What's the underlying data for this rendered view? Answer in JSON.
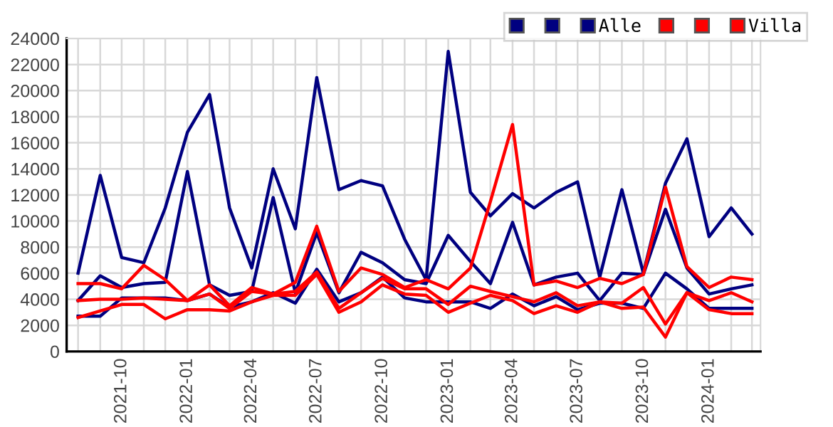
{
  "chart_data": {
    "type": "line",
    "legend": "top right",
    "grid": true,
    "marker": "none",
    "line_style": "solid",
    "x": [
      "2021-08",
      "2021-09",
      "2021-10",
      "2021-11",
      "2021-12",
      "2022-01",
      "2022-02",
      "2022-03",
      "2022-04",
      "2022-05",
      "2022-06",
      "2022-07",
      "2022-08",
      "2022-09",
      "2022-10",
      "2022-11",
      "2022-12",
      "2023-01",
      "2023-02",
      "2023-03",
      "2023-04",
      "2023-05",
      "2023-06",
      "2023-07",
      "2023-08",
      "2023-09",
      "2023-10",
      "2023-11",
      "2023-12",
      "2024-01",
      "2024-02",
      "2024-03"
    ],
    "xlim": [
      "2021-07-16",
      "2024-03-13"
    ],
    "xticks": [
      {
        "value": "2021-08",
        "label": null
      },
      {
        "value": "2021-09",
        "label": null
      },
      "2021-10",
      {
        "value": "2021-11",
        "label": null
      },
      {
        "value": "2021-12",
        "label": null
      },
      "2022-01",
      {
        "value": "2022-02",
        "label": null
      },
      {
        "value": "2022-03",
        "label": null
      },
      "2022-04",
      {
        "value": "2022-05",
        "label": null
      },
      {
        "value": "2022-06",
        "label": null
      },
      "2022-07",
      {
        "value": "2022-08",
        "label": null
      },
      {
        "value": "2022-09",
        "label": null
      },
      "2022-10",
      {
        "value": "2022-11",
        "label": null
      },
      {
        "value": "2022-12",
        "label": null
      },
      "2023-01",
      {
        "value": "2023-02",
        "label": null
      },
      {
        "value": "2023-03",
        "label": null
      },
      "2023-04",
      {
        "value": "2023-05",
        "label": null
      },
      {
        "value": "2023-06",
        "label": null
      },
      "2023-07",
      {
        "value": "2023-08",
        "label": null
      },
      {
        "value": "2023-09",
        "label": null
      },
      "2023-10",
      {
        "value": "2023-11",
        "label": null
      },
      {
        "value": "2023-12",
        "label": null
      },
      "2024-01",
      {
        "value": "2024-02",
        "label": null
      },
      {
        "value": "2024-03",
        "label": null
      }
    ],
    "ylim": [
      0,
      24000
    ],
    "yticks": [
      0,
      2000,
      4000,
      6000,
      8000,
      10000,
      12000,
      14000,
      16000,
      18000,
      20000,
      22000,
      24000
    ],
    "series": [
      {
        "color": "#000080",
        "values": [
          6000,
          13500,
          7200,
          6800,
          11000,
          16800,
          19700,
          11000,
          6400,
          14000,
          9400,
          21000,
          12400,
          13100,
          12700,
          8600,
          5500,
          23000,
          12200,
          10400,
          12100,
          11000,
          12200,
          13000,
          5700,
          12400,
          6000,
          12900,
          16300,
          8800,
          11000,
          9000
        ]
      },
      {
        "color": "#000080",
        "values": [
          3900,
          5800,
          4900,
          5200,
          5300,
          13800,
          5100,
          4300,
          4600,
          11800,
          4500,
          9100,
          4500,
          7600,
          6800,
          5500,
          5200,
          8900,
          6900,
          5200,
          9900,
          5100,
          5700,
          6000,
          3900,
          6000,
          5900,
          10900,
          6400,
          4400,
          4800,
          5100
        ]
      },
      {
        "name": "Alle",
        "color": "#000080",
        "values": [
          2700,
          2700,
          4100,
          4100,
          4100,
          3900,
          4400,
          3400,
          3800,
          4500,
          3700,
          6300,
          3800,
          4500,
          5700,
          4100,
          3800,
          3800,
          3800,
          3300,
          4400,
          3500,
          4200,
          3200,
          3700,
          3700,
          3300,
          6000,
          4800,
          3300,
          3300,
          3300
        ]
      },
      {
        "color": "#ff0000",
        "values": [
          5200,
          5200,
          4800,
          6600,
          5500,
          3900,
          5100,
          3500,
          4900,
          4400,
          5300,
          9600,
          4600,
          6400,
          5900,
          4900,
          5500,
          4800,
          6400,
          11500,
          17400,
          5100,
          5400,
          4900,
          5600,
          5200,
          5900,
          12600,
          6500,
          4900,
          5700,
          5500
        ]
      },
      {
        "color": "#ff0000",
        "values": [
          3900,
          4000,
          4000,
          4100,
          4000,
          3900,
          4400,
          3300,
          4600,
          4400,
          4600,
          6100,
          3300,
          4500,
          5600,
          4800,
          4800,
          3600,
          5000,
          4600,
          4200,
          3800,
          4500,
          3500,
          3800,
          3700,
          4900,
          2100,
          4500,
          3900,
          4500,
          3800
        ]
      },
      {
        "name": "Villa",
        "color": "#ff0000",
        "values": [
          2600,
          3100,
          3600,
          3600,
          2500,
          3200,
          3200,
          3100,
          3800,
          4300,
          4300,
          5900,
          3000,
          3800,
          5100,
          4400,
          4300,
          3000,
          3700,
          4300,
          3900,
          2900,
          3500,
          3000,
          3800,
          3300,
          3400,
          1100,
          4500,
          3200,
          2900,
          2900
        ]
      }
    ]
  }
}
